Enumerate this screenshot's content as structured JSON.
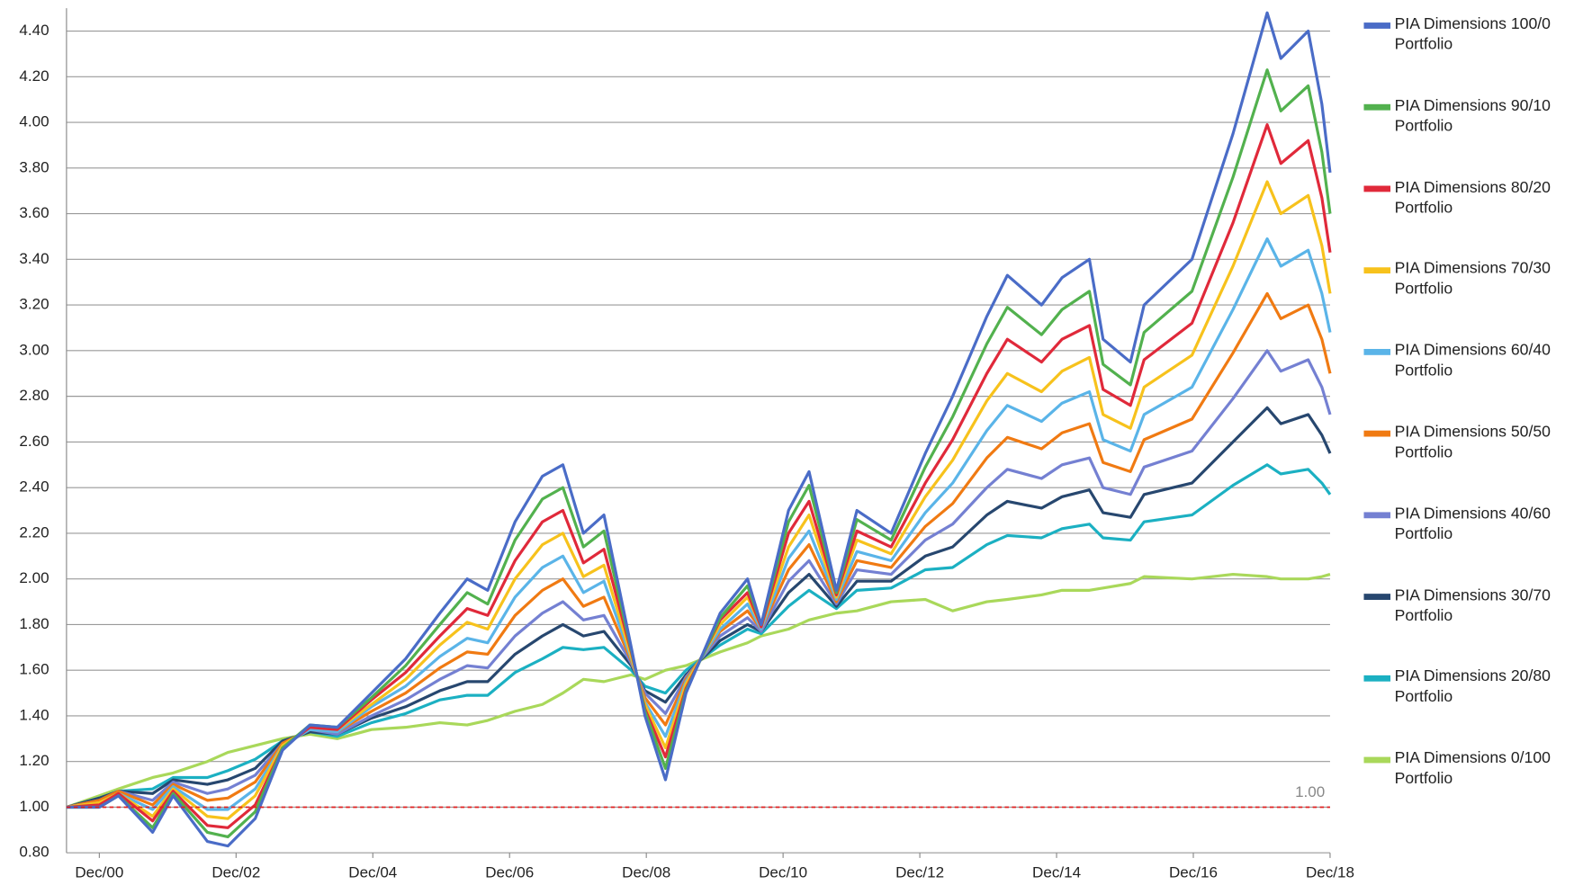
{
  "chart_data": {
    "type": "line",
    "x": [
      2000.44,
      2000.92,
      2001.2,
      2001.7,
      2002.0,
      2002.5,
      2002.8,
      2003.2,
      2003.6,
      2004.0,
      2004.4,
      2004.9,
      2005.4,
      2005.9,
      2006.3,
      2006.6,
      2007.0,
      2007.4,
      2007.7,
      2008.0,
      2008.3,
      2008.7,
      2008.9,
      2009.2,
      2009.5,
      2010.0,
      2010.4,
      2010.6,
      2011.0,
      2011.3,
      2011.7,
      2012.0,
      2012.5,
      2013.0,
      2013.4,
      2013.9,
      2014.2,
      2014.7,
      2015.0,
      2015.4,
      2015.6,
      2016.0,
      2016.2,
      2016.9,
      2017.5,
      2018.0,
      2018.2,
      2018.6,
      2018.8,
      2018.92
    ],
    "xlim": [
      2000.44,
      2018.92
    ],
    "xticks": [
      {
        "value": 2000.92,
        "label": "Dec/00"
      },
      {
        "value": 2002.92,
        "label": "Dec/02"
      },
      {
        "value": 2004.92,
        "label": "Dec/04"
      },
      {
        "value": 2006.92,
        "label": "Dec/06"
      },
      {
        "value": 2008.92,
        "label": "Dec/08"
      },
      {
        "value": 2010.92,
        "label": "Dec/10"
      },
      {
        "value": 2012.92,
        "label": "Dec/12"
      },
      {
        "value": 2014.92,
        "label": "Dec/14"
      },
      {
        "value": 2016.92,
        "label": "Dec/16"
      },
      {
        "value": 2018.92,
        "label": "Dec/18"
      }
    ],
    "ylim": [
      0.8,
      4.5
    ],
    "yticks": [
      {
        "value": 0.8,
        "label": "0.80"
      },
      {
        "value": 1,
        "label": "1.00"
      },
      {
        "value": 1.2,
        "label": "1.20"
      },
      {
        "value": 1.4,
        "label": "1.40"
      },
      {
        "value": 1.6,
        "label": "1.60"
      },
      {
        "value": 1.8,
        "label": "1.80"
      },
      {
        "value": 2,
        "label": "2.00"
      },
      {
        "value": 2.2,
        "label": "2.20"
      },
      {
        "value": 2.4,
        "label": "2.40"
      },
      {
        "value": 2.6,
        "label": "2.60"
      },
      {
        "value": 2.8,
        "label": "2.80"
      },
      {
        "value": 3,
        "label": "3.00"
      },
      {
        "value": 3.2,
        "label": "3.20"
      },
      {
        "value": 3.4,
        "label": "3.40"
      },
      {
        "value": 3.6,
        "label": "3.60"
      },
      {
        "value": 3.8,
        "label": "3.80"
      },
      {
        "value": 4,
        "label": "4.00"
      },
      {
        "value": 4.2,
        "label": "4.20"
      },
      {
        "value": 4.4,
        "label": "4.40"
      }
    ],
    "grid": true,
    "legend": "right",
    "reference_line": {
      "value": 1,
      "label": "1.00",
      "color": "#e02020"
    },
    "series": [
      {
        "name": "PIA Dimensions 100/0 Portfolio",
        "color": "#4a6cc7",
        "values": [
          1.0,
          1.0,
          1.05,
          0.89,
          1.05,
          0.85,
          0.83,
          0.95,
          1.25,
          1.36,
          1.35,
          1.5,
          1.65,
          1.85,
          2.0,
          1.95,
          2.25,
          2.45,
          2.5,
          2.2,
          2.28,
          1.7,
          1.4,
          1.12,
          1.5,
          1.85,
          2.0,
          1.8,
          2.3,
          2.47,
          1.95,
          2.3,
          2.2,
          2.55,
          2.8,
          3.15,
          3.33,
          3.2,
          3.32,
          3.4,
          3.05,
          2.95,
          3.2,
          3.4,
          3.95,
          4.48,
          4.28,
          4.4,
          4.08,
          3.78
        ]
      },
      {
        "name": "PIA Dimensions 90/10 Portfolio",
        "color": "#52b14e",
        "values": [
          1.0,
          1.0,
          1.05,
          0.91,
          1.06,
          0.89,
          0.87,
          0.98,
          1.26,
          1.36,
          1.35,
          1.48,
          1.62,
          1.8,
          1.94,
          1.89,
          2.17,
          2.35,
          2.4,
          2.14,
          2.21,
          1.69,
          1.42,
          1.17,
          1.51,
          1.83,
          1.97,
          1.8,
          2.25,
          2.41,
          1.94,
          2.26,
          2.17,
          2.49,
          2.71,
          3.03,
          3.19,
          3.07,
          3.18,
          3.26,
          2.94,
          2.85,
          3.08,
          3.26,
          3.76,
          4.23,
          4.05,
          4.16,
          3.87,
          3.6
        ]
      },
      {
        "name": "PIA Dimensions 80/20 Portfolio",
        "color": "#e0293a",
        "values": [
          1.0,
          1.01,
          1.06,
          0.94,
          1.07,
          0.92,
          0.91,
          1.01,
          1.26,
          1.35,
          1.34,
          1.47,
          1.59,
          1.75,
          1.87,
          1.84,
          2.08,
          2.25,
          2.3,
          2.07,
          2.13,
          1.68,
          1.43,
          1.22,
          1.52,
          1.82,
          1.94,
          1.79,
          2.2,
          2.34,
          1.93,
          2.21,
          2.14,
          2.42,
          2.61,
          2.9,
          3.05,
          2.95,
          3.05,
          3.11,
          2.83,
          2.76,
          2.96,
          3.12,
          3.56,
          3.99,
          3.82,
          3.92,
          3.67,
          3.43
        ]
      },
      {
        "name": "PIA Dimensions 70/30 Portfolio",
        "color": "#f7c21c",
        "values": [
          1.0,
          1.02,
          1.06,
          0.96,
          1.08,
          0.96,
          0.95,
          1.05,
          1.27,
          1.35,
          1.34,
          1.45,
          1.56,
          1.71,
          1.81,
          1.78,
          2.0,
          2.15,
          2.2,
          2.01,
          2.06,
          1.66,
          1.45,
          1.26,
          1.54,
          1.8,
          1.92,
          1.79,
          2.14,
          2.28,
          1.92,
          2.17,
          2.11,
          2.36,
          2.52,
          2.78,
          2.9,
          2.82,
          2.91,
          2.97,
          2.72,
          2.66,
          2.84,
          2.98,
          3.37,
          3.74,
          3.6,
          3.68,
          3.46,
          3.25
        ]
      },
      {
        "name": "PIA Dimensions 60/40 Portfolio",
        "color": "#5ab4e8",
        "values": [
          1.0,
          1.02,
          1.06,
          0.99,
          1.09,
          0.99,
          0.99,
          1.08,
          1.27,
          1.34,
          1.33,
          1.44,
          1.53,
          1.66,
          1.74,
          1.72,
          1.92,
          2.05,
          2.1,
          1.94,
          1.99,
          1.65,
          1.46,
          1.31,
          1.55,
          1.78,
          1.89,
          1.78,
          2.09,
          2.21,
          1.91,
          2.12,
          2.08,
          2.29,
          2.42,
          2.65,
          2.76,
          2.69,
          2.77,
          2.82,
          2.61,
          2.56,
          2.72,
          2.84,
          3.18,
          3.49,
          3.37,
          3.44,
          3.25,
          3.08
        ]
      },
      {
        "name": "PIA Dimensions 50/50 Portfolio",
        "color": "#f07a12",
        "values": [
          1.0,
          1.03,
          1.07,
          1.01,
          1.1,
          1.03,
          1.04,
          1.11,
          1.28,
          1.34,
          1.33,
          1.42,
          1.5,
          1.61,
          1.68,
          1.67,
          1.84,
          1.95,
          2.0,
          1.88,
          1.92,
          1.64,
          1.48,
          1.36,
          1.56,
          1.77,
          1.86,
          1.78,
          2.04,
          2.15,
          1.9,
          2.08,
          2.05,
          2.23,
          2.33,
          2.53,
          2.62,
          2.57,
          2.64,
          2.68,
          2.51,
          2.47,
          2.61,
          2.7,
          2.99,
          3.25,
          3.14,
          3.2,
          3.05,
          2.9
        ]
      },
      {
        "name": "PIA Dimensions 40/60 Portfolio",
        "color": "#7480d2",
        "values": [
          1.0,
          1.03,
          1.07,
          1.03,
          1.11,
          1.06,
          1.08,
          1.14,
          1.28,
          1.34,
          1.32,
          1.4,
          1.47,
          1.56,
          1.62,
          1.61,
          1.75,
          1.85,
          1.9,
          1.82,
          1.84,
          1.63,
          1.5,
          1.41,
          1.57,
          1.75,
          1.83,
          1.77,
          1.99,
          2.08,
          1.89,
          2.04,
          2.02,
          2.17,
          2.24,
          2.4,
          2.48,
          2.44,
          2.5,
          2.53,
          2.4,
          2.37,
          2.49,
          2.56,
          2.79,
          3.0,
          2.91,
          2.96,
          2.84,
          2.72
        ]
      },
      {
        "name": "PIA Dimensions 30/70 Portfolio",
        "color": "#27476f",
        "values": [
          1.0,
          1.04,
          1.07,
          1.06,
          1.12,
          1.1,
          1.12,
          1.17,
          1.29,
          1.33,
          1.32,
          1.39,
          1.44,
          1.51,
          1.55,
          1.55,
          1.67,
          1.75,
          1.8,
          1.75,
          1.77,
          1.62,
          1.51,
          1.46,
          1.58,
          1.73,
          1.8,
          1.77,
          1.94,
          2.02,
          1.88,
          1.99,
          1.99,
          2.1,
          2.14,
          2.28,
          2.34,
          2.31,
          2.36,
          2.39,
          2.29,
          2.27,
          2.37,
          2.42,
          2.6,
          2.75,
          2.68,
          2.72,
          2.63,
          2.55
        ]
      },
      {
        "name": "PIA Dimensions 20/80 Portfolio",
        "color": "#1bb0c2",
        "values": [
          1.0,
          1.04,
          1.07,
          1.08,
          1.13,
          1.13,
          1.16,
          1.21,
          1.29,
          1.33,
          1.31,
          1.37,
          1.41,
          1.47,
          1.49,
          1.49,
          1.59,
          1.65,
          1.7,
          1.69,
          1.7,
          1.6,
          1.53,
          1.5,
          1.6,
          1.71,
          1.78,
          1.76,
          1.88,
          1.95,
          1.87,
          1.95,
          1.96,
          2.04,
          2.05,
          2.15,
          2.19,
          2.18,
          2.22,
          2.24,
          2.18,
          2.17,
          2.25,
          2.28,
          2.41,
          2.5,
          2.46,
          2.48,
          2.42,
          2.37
        ]
      },
      {
        "name": "PIA Dimensions 0/100 Portfolio",
        "color": "#a9d85a",
        "values": [
          1.0,
          1.05,
          1.08,
          1.13,
          1.15,
          1.2,
          1.24,
          1.27,
          1.3,
          1.32,
          1.3,
          1.34,
          1.35,
          1.37,
          1.36,
          1.38,
          1.42,
          1.45,
          1.5,
          1.56,
          1.55,
          1.58,
          1.56,
          1.6,
          1.62,
          1.68,
          1.72,
          1.75,
          1.78,
          1.82,
          1.85,
          1.86,
          1.9,
          1.91,
          1.86,
          1.9,
          1.91,
          1.93,
          1.95,
          1.95,
          1.96,
          1.98,
          2.01,
          2.0,
          2.02,
          2.01,
          2.0,
          2.0,
          2.01,
          2.02
        ]
      }
    ]
  }
}
